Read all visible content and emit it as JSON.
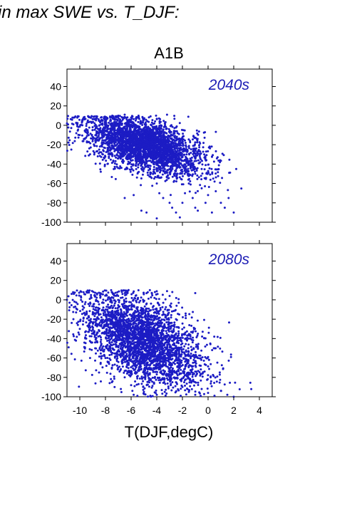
{
  "header": {
    "text": "in max SWE vs. T_DJF:"
  },
  "figure": {
    "scenario": "A1B",
    "xlabel": "T(DJF,degC)"
  },
  "colors": {
    "point": "#1c1cc4",
    "panel_label": "#1c1cb4",
    "axis": "#000000"
  },
  "chart_data": [
    {
      "type": "scatter",
      "title": "A1B",
      "panel_label": "2040s",
      "xlabel": "",
      "ylabel": "",
      "xlim": [
        -11,
        5
      ],
      "ylim": [
        -100,
        58
      ],
      "x_ticks": [
        -10,
        -8,
        -6,
        -4,
        -2,
        0,
        2,
        4
      ],
      "y_ticks": [
        -100,
        -80,
        -60,
        -40,
        -20,
        0,
        20,
        40
      ],
      "y_tick_labels": [
        "-100",
        "-80",
        "-60",
        "-40",
        "-20",
        "0",
        "20",
        "40"
      ],
      "grid": false,
      "cloud": {
        "center": [
          -5,
          -20
        ],
        "spread": [
          2.2,
          13
        ],
        "trend": 3.5
      },
      "points": [
        [
          -11,
          2
        ],
        [
          -10.5,
          1
        ],
        [
          -10.2,
          -1
        ],
        [
          -9.8,
          0
        ],
        [
          -9.5,
          -4
        ],
        [
          -9,
          -2
        ],
        [
          -8.7,
          -8
        ],
        [
          -8.5,
          -5
        ],
        [
          -8.2,
          -12
        ],
        [
          -8,
          -3
        ],
        [
          -7.6,
          -15
        ],
        [
          -7.4,
          -2
        ],
        [
          -7,
          -18
        ],
        [
          -6.8,
          -6
        ],
        [
          -6.5,
          11
        ],
        [
          -6.2,
          -25
        ],
        [
          -6,
          -30
        ],
        [
          -5.8,
          -10
        ],
        [
          -5.5,
          -35
        ],
        [
          -5.2,
          -40
        ],
        [
          -5,
          -45
        ],
        [
          -4.8,
          -20
        ],
        [
          -4.5,
          -50
        ],
        [
          -4.2,
          -55
        ],
        [
          -4,
          -60
        ],
        [
          -3.8,
          -70
        ],
        [
          -3.5,
          -75
        ],
        [
          -3.2,
          11
        ],
        [
          -3,
          -80
        ],
        [
          -2.8,
          -85
        ],
        [
          -2.5,
          -90
        ],
        [
          -2.2,
          -95
        ],
        [
          -2,
          -80
        ],
        [
          -1.8,
          -70
        ],
        [
          -1.5,
          -60
        ],
        [
          -1.2,
          -75
        ],
        [
          -1,
          -85
        ],
        [
          -0.8,
          -88
        ],
        [
          -0.5,
          -65
        ],
        [
          -0.2,
          -80
        ],
        [
          0,
          -72
        ],
        [
          0.3,
          -90
        ],
        [
          0.6,
          -68
        ],
        [
          1,
          -80
        ],
        [
          1.3,
          -85
        ],
        [
          1.6,
          -75
        ],
        [
          2,
          -90
        ],
        [
          -6.5,
          -75
        ],
        [
          -5.8,
          -72
        ],
        [
          -5.2,
          -88
        ],
        [
          -4.8,
          -90
        ],
        [
          -4,
          -96
        ],
        [
          -1,
          -50
        ],
        [
          -0.5,
          -45
        ],
        [
          0.4,
          -55
        ],
        [
          -0.3,
          -30
        ]
      ]
    },
    {
      "type": "scatter",
      "panel_label": "2080s",
      "xlabel": "T(DJF,degC)",
      "ylabel": "",
      "xlim": [
        -11,
        5
      ],
      "ylim": [
        -100,
        58
      ],
      "x_ticks": [
        -10,
        -8,
        -6,
        -4,
        -2,
        0,
        2,
        4
      ],
      "x_tick_labels": [
        "-10",
        "-8",
        "-6",
        "-4",
        "-2",
        "0",
        "2",
        "4"
      ],
      "y_ticks": [
        -100,
        -80,
        -60,
        -40,
        -20,
        0,
        20,
        40
      ],
      "y_tick_labels": [
        "-100",
        "-80",
        "-60",
        "-40",
        "-20",
        "0",
        "20",
        "40"
      ],
      "grid": false,
      "cloud": {
        "center": [
          -5,
          -42
        ],
        "spread": [
          2.3,
          22
        ],
        "trend": 5
      },
      "points": [
        [
          -11,
          0
        ],
        [
          -10.8,
          -3
        ],
        [
          -10.5,
          -20
        ],
        [
          -10.2,
          -10
        ],
        [
          -10,
          -30
        ],
        [
          -9.8,
          -2
        ],
        [
          -9.5,
          -40
        ],
        [
          -9,
          -15
        ],
        [
          -8.8,
          -50
        ],
        [
          -8.5,
          -25
        ],
        [
          -8,
          -60
        ],
        [
          -7.8,
          -5
        ],
        [
          -7.5,
          -70
        ],
        [
          -7,
          -35
        ],
        [
          -6.8,
          2
        ],
        [
          -6.5,
          -80
        ],
        [
          -6.2,
          10
        ],
        [
          -6,
          -88
        ],
        [
          -5.5,
          -45
        ],
        [
          -5,
          -95
        ],
        [
          -4.5,
          -55
        ],
        [
          -4,
          -98
        ],
        [
          -3.5,
          -65
        ],
        [
          -3.2,
          9
        ],
        [
          -3,
          -75
        ],
        [
          -2.5,
          -85
        ],
        [
          -2,
          -90
        ],
        [
          -1.5,
          -95
        ],
        [
          -1,
          -98
        ],
        [
          -0.5,
          -92
        ],
        [
          0,
          -96
        ],
        [
          0.5,
          -99
        ],
        [
          1,
          -94
        ],
        [
          1.5,
          -98
        ],
        [
          2,
          -100
        ],
        [
          -3,
          4
        ],
        [
          -2.5,
          -20
        ],
        [
          -1.5,
          -40
        ],
        [
          -0.8,
          -60
        ],
        [
          0.2,
          -80
        ],
        [
          -7.5,
          -85
        ],
        [
          -6.8,
          -92
        ],
        [
          -5.8,
          -98
        ],
        [
          -4.5,
          -99
        ],
        [
          -8.5,
          -75
        ],
        [
          -9.2,
          -60
        ]
      ]
    }
  ]
}
